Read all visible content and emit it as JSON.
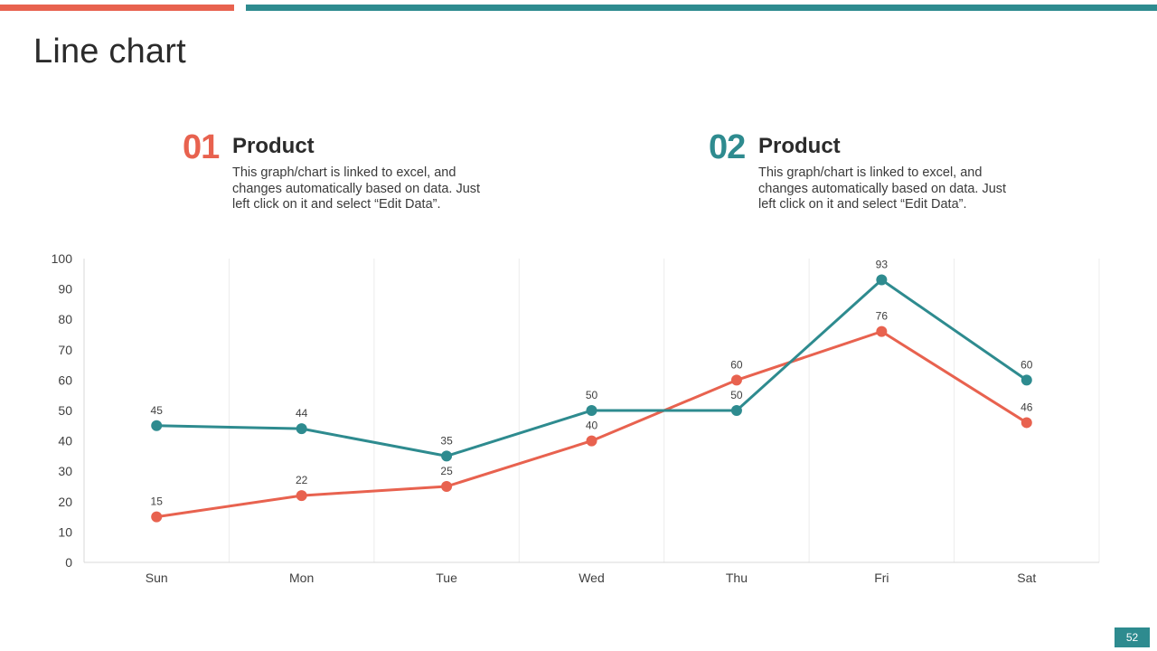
{
  "slide": {
    "title": "Line chart",
    "page_number": "52",
    "accent_red": "#e8624f",
    "accent_teal": "#2e8b8f"
  },
  "products": [
    {
      "number": "01",
      "heading": "Product",
      "description": "This graph/chart is linked to excel, and changes automatically based on data. Just left click on it and select “Edit Data”."
    },
    {
      "number": "02",
      "heading": "Product",
      "description": "This graph/chart is linked to excel, and changes automatically based on data. Just left click on it and select “Edit Data”."
    }
  ],
  "chart_data": {
    "type": "line",
    "title": "",
    "xlabel": "",
    "ylabel": "",
    "categories": [
      "Sun",
      "Mon",
      "Tue",
      "Wed",
      "Thu",
      "Fri",
      "Sat"
    ],
    "ylim": [
      0,
      100
    ],
    "yticks": [
      0,
      10,
      20,
      30,
      40,
      50,
      60,
      70,
      80,
      90,
      100
    ],
    "grid": "vertical",
    "legend": "none",
    "series": [
      {
        "name": "Product 01",
        "color": "#e8624f",
        "values": [
          15,
          22,
          25,
          40,
          60,
          76,
          46
        ]
      },
      {
        "name": "Product 02",
        "color": "#2e8b8f",
        "values": [
          45,
          44,
          35,
          50,
          50,
          93,
          60
        ]
      }
    ]
  }
}
